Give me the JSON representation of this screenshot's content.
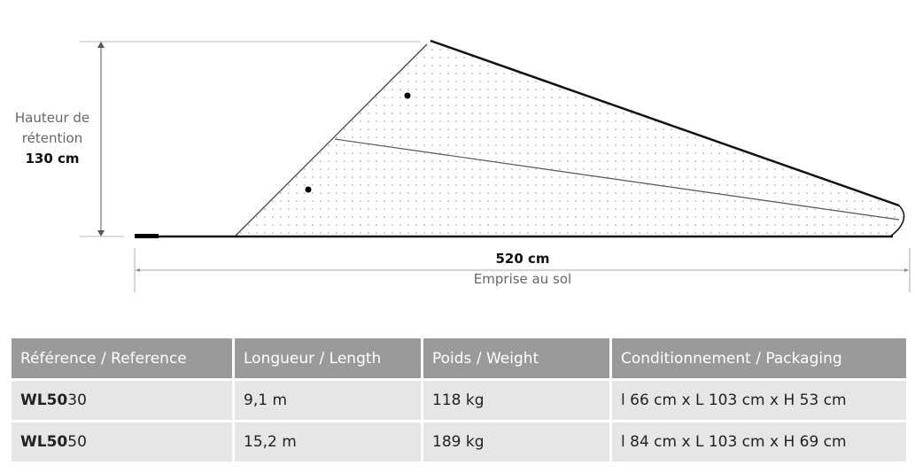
{
  "diagram": {
    "height_label_line1": "Hauteur de",
    "height_label_line2": "rétention",
    "height_value": "130 cm",
    "length_value": "520 cm",
    "length_label": "Emprise au sol"
  },
  "table": {
    "headers": [
      "Référence / Reference",
      "Longueur / Length",
      "Poids / Weight",
      "Conditionnement / Packaging"
    ],
    "rows": [
      {
        "ref_bold": "WL50",
        "ref_rest": "30",
        "length": "9,1 m",
        "weight": "118 kg",
        "packaging": "l 66 cm x L 103 cm x H 53 cm"
      },
      {
        "ref_bold": "WL50",
        "ref_rest": "50",
        "length": "15,2 m",
        "weight": "189 kg",
        "packaging": "l 84 cm x L 103 cm x H 69 cm"
      }
    ]
  }
}
